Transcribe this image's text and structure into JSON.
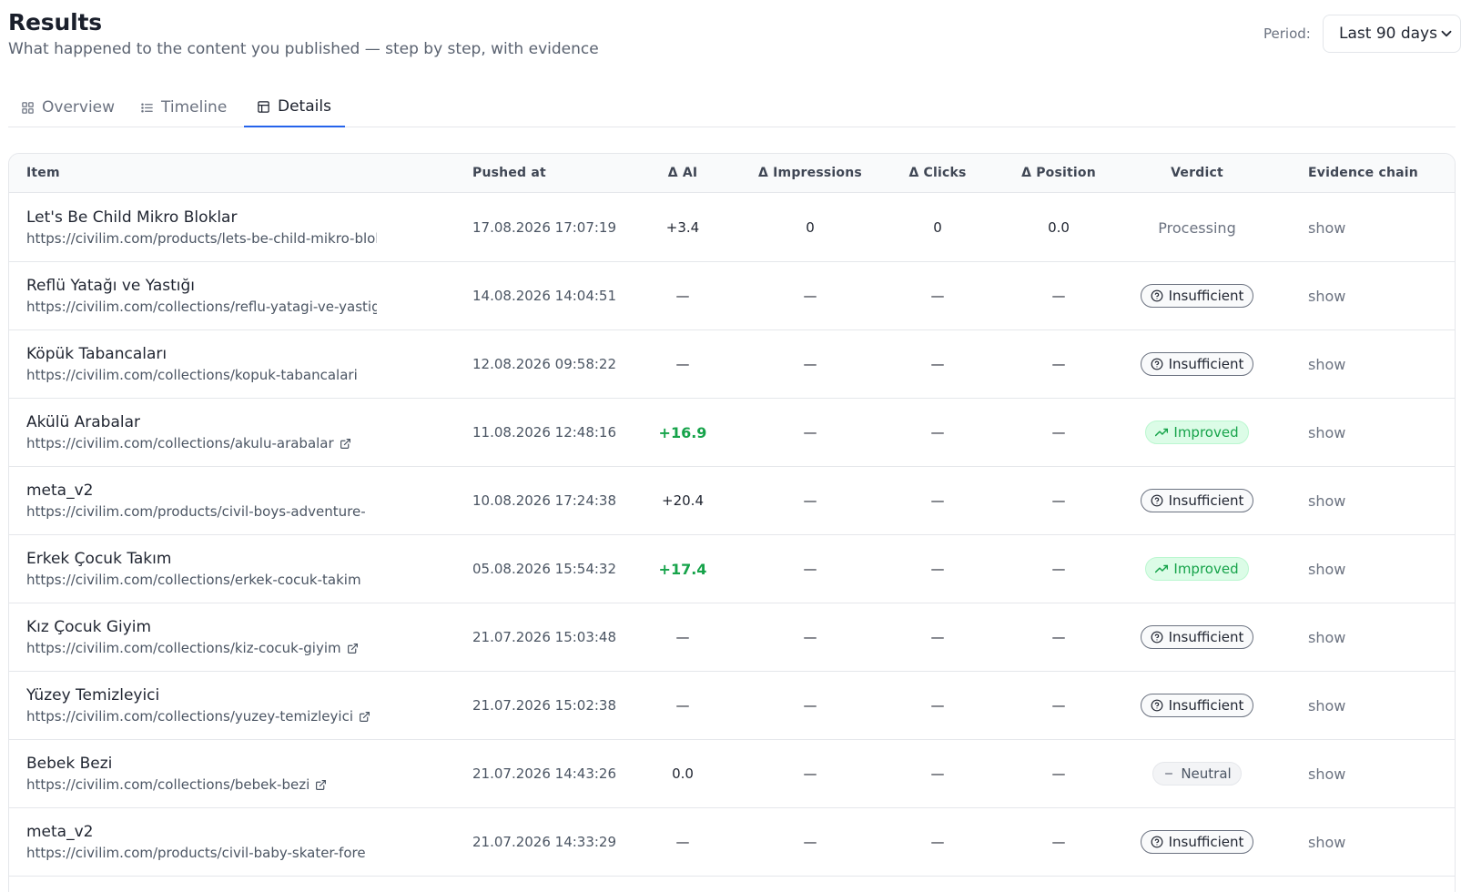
{
  "header": {
    "title": "Results",
    "subtitle": "What happened to the content you published — step by step, with evidence",
    "period_label": "Period:",
    "period_value": "Last 90 days"
  },
  "tabs": [
    {
      "label": "Overview",
      "icon": "grid-icon",
      "active": false
    },
    {
      "label": "Timeline",
      "icon": "list-icon",
      "active": false
    },
    {
      "label": "Details",
      "icon": "table-icon",
      "active": true
    }
  ],
  "table": {
    "columns": [
      "Item",
      "Pushed at",
      "Δ AI",
      "Δ Impressions",
      "Δ Clicks",
      "Δ Position",
      "Verdict",
      "Evidence chain"
    ],
    "rows": [
      {
        "name": "Let's Be Child Mikro Bloklar",
        "url": "https://civilim.com/products/lets-be-child-mikro-bloklar",
        "pushed": "17.08.2026 17:07:19",
        "ai": "+3.4",
        "ai_green": false,
        "impressions": "0",
        "clicks": "0",
        "position": "0.0",
        "verdict": "Processing",
        "verdict_type": "processing",
        "evidence": "show",
        "ext": false
      },
      {
        "name": "Reflü Yatağı ve Yastığı",
        "url": "https://civilim.com/collections/reflu-yatagi-ve-yastigi",
        "pushed": "14.08.2026 14:04:51",
        "ai": "—",
        "ai_green": false,
        "impressions": "—",
        "clicks": "—",
        "position": "—",
        "verdict": "Insufficient",
        "verdict_type": "insufficient",
        "evidence": "show",
        "ext": false
      },
      {
        "name": "Köpük Tabancaları",
        "url": "https://civilim.com/collections/kopuk-tabancalari",
        "pushed": "12.08.2026 09:58:22",
        "ai": "—",
        "ai_green": false,
        "impressions": "—",
        "clicks": "—",
        "position": "—",
        "verdict": "Insufficient",
        "verdict_type": "insufficient",
        "evidence": "show",
        "ext": false
      },
      {
        "name": "Akülü Arabalar",
        "url": "https://civilim.com/collections/akulu-arabalar",
        "pushed": "11.08.2026 12:48:16",
        "ai": "+16.9",
        "ai_green": true,
        "impressions": "—",
        "clicks": "—",
        "position": "—",
        "verdict": "Improved",
        "verdict_type": "improved",
        "evidence": "show",
        "ext": true
      },
      {
        "name": "meta_v2",
        "url": "https://civilim.com/products/civil-boys-adventure-",
        "pushed": "10.08.2026 17:24:38",
        "ai": "+20.4",
        "ai_green": false,
        "impressions": "—",
        "clicks": "—",
        "position": "—",
        "verdict": "Insufficient",
        "verdict_type": "insufficient",
        "evidence": "show",
        "ext": false
      },
      {
        "name": "Erkek Çocuk Takım",
        "url": "https://civilim.com/collections/erkek-cocuk-takim",
        "pushed": "05.08.2026 15:54:32",
        "ai": "+17.4",
        "ai_green": true,
        "impressions": "—",
        "clicks": "—",
        "position": "—",
        "verdict": "Improved",
        "verdict_type": "improved",
        "evidence": "show",
        "ext": false
      },
      {
        "name": "Kız Çocuk Giyim",
        "url": "https://civilim.com/collections/kiz-cocuk-giyim",
        "pushed": "21.07.2026 15:03:48",
        "ai": "—",
        "ai_green": false,
        "impressions": "—",
        "clicks": "—",
        "position": "—",
        "verdict": "Insufficient",
        "verdict_type": "insufficient",
        "evidence": "show",
        "ext": true
      },
      {
        "name": "Yüzey Temizleyici",
        "url": "https://civilim.com/collections/yuzey-temizleyici",
        "pushed": "21.07.2026 15:02:38",
        "ai": "—",
        "ai_green": false,
        "impressions": "—",
        "clicks": "—",
        "position": "—",
        "verdict": "Insufficient",
        "verdict_type": "insufficient",
        "evidence": "show",
        "ext": true
      },
      {
        "name": "Bebek Bezi",
        "url": "https://civilim.com/collections/bebek-bezi",
        "pushed": "21.07.2026 14:43:26",
        "ai": "0.0",
        "ai_green": false,
        "impressions": "—",
        "clicks": "—",
        "position": "—",
        "verdict": "Neutral",
        "verdict_type": "neutral",
        "evidence": "show",
        "ext": true
      },
      {
        "name": "meta_v2",
        "url": "https://civilim.com/products/civil-baby-skater-fore",
        "pushed": "21.07.2026 14:33:29",
        "ai": "—",
        "ai_green": false,
        "impressions": "—",
        "clicks": "—",
        "position": "—",
        "verdict": "Insufficient",
        "verdict_type": "insufficient",
        "evidence": "show",
        "ext": false
      }
    ]
  },
  "colors": {
    "accent": "#2563eb",
    "improved": "#16a34a",
    "border": "#e5e7eb"
  }
}
